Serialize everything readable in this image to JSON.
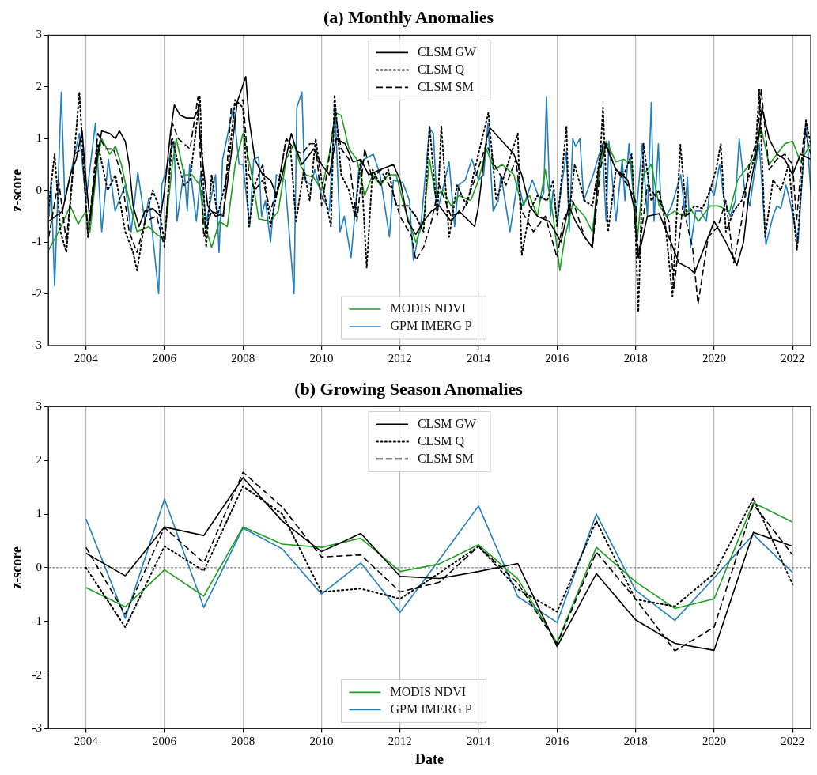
{
  "chart_data": [
    {
      "type": "line",
      "title": "(a) Monthly Anomalies",
      "ylabel": "z-score",
      "xlim": [
        2003.04,
        2022.46
      ],
      "xticks": [
        2004,
        2006,
        2008,
        2010,
        2012,
        2014,
        2016,
        2018,
        2020,
        2022
      ],
      "ylim": [
        -3,
        3
      ],
      "yticks": [
        -3,
        -2,
        -1,
        0,
        1,
        2,
        3
      ],
      "grid": "x",
      "legend": "top",
      "marker": "none",
      "series": [
        {
          "name": "CLSM GW",
          "color": "#000000",
          "line_style": "solid",
          "x": [
            2003.05,
            2003.4,
            2003.6,
            2003.75,
            2003.9,
            2004.0,
            2004.1,
            2004.3,
            2004.4,
            2004.6,
            2004.75,
            2004.85,
            2005.0,
            2005.1,
            2005.2,
            2005.35,
            2005.5,
            2005.7,
            2005.9,
            2006.0,
            2006.15,
            2006.25,
            2006.4,
            2006.55,
            2006.75,
            2006.85,
            2006.95,
            2007.1,
            2007.3,
            2007.5,
            2007.7,
            2007.85,
            2008.07,
            2008.15,
            2008.3,
            2008.5,
            2008.7,
            2008.85,
            2009.0,
            2009.23,
            2009.35,
            2009.5,
            2009.8,
            2010.0,
            2010.2,
            2010.37,
            2010.6,
            2010.8,
            2011.0,
            2011.2,
            2011.5,
            2011.83,
            2012.0,
            2012.2,
            2012.4,
            2012.6,
            2012.8,
            2013.0,
            2013.3,
            2013.5,
            2013.9,
            2014.0,
            2014.2,
            2014.3,
            2014.6,
            2014.9,
            2015.1,
            2015.3,
            2015.5,
            2015.8,
            2016.1,
            2016.3,
            2016.47,
            2016.7,
            2016.9,
            2017.05,
            2017.19,
            2017.5,
            2017.8,
            2017.95,
            2018.07,
            2018.3,
            2018.6,
            2018.9,
            2019.1,
            2019.36,
            2019.5,
            2019.8,
            2020.0,
            2020.3,
            2020.58,
            2020.75,
            2020.9,
            2021.1,
            2021.22,
            2021.4,
            2021.6,
            2021.8,
            2022.0,
            2022.2,
            2022.46
          ],
          "values": [
            -0.6,
            -0.4,
            0.3,
            0.6,
            1.15,
            0.2,
            -0.6,
            0.7,
            1.15,
            1.1,
            1.0,
            1.15,
            0.95,
            0.5,
            -0.3,
            -0.7,
            -0.4,
            -0.35,
            -0.5,
            0,
            1.1,
            1.65,
            1.45,
            1.4,
            1.4,
            1.55,
            0.7,
            -0.3,
            -0.5,
            -0.45,
            0.7,
            1.7,
            2.2,
            1.4,
            0.6,
            0.3,
            0.2,
            -0.1,
            0.3,
            1.1,
            0.8,
            0.5,
            0.8,
            0.5,
            0.3,
            1.0,
            0.9,
            0.55,
            0.6,
            0.3,
            0.4,
            0.5,
            0.2,
            -0.6,
            -0.85,
            -0.6,
            -0.4,
            -0.3,
            -0.6,
            -0.4,
            -0.7,
            -0.3,
            1.0,
            1.2,
            0.95,
            0.7,
            0.3,
            -0.3,
            -0.5,
            -0.6,
            -1.0,
            -0.3,
            -0.6,
            -0.9,
            -1.1,
            0.4,
            0.95,
            0.4,
            0.2,
            -0.3,
            -1.3,
            -0.5,
            -0.45,
            -1.0,
            -1.4,
            -1.5,
            -1.6,
            -1.0,
            -0.6,
            -1.0,
            -1.45,
            -1.0,
            0.0,
            0.8,
            1.6,
            1.0,
            0.7,
            0.6,
            0.3,
            0.7,
            0.6
          ]
        },
        {
          "name": "CLSM Q",
          "color": "#000000",
          "line_style": "dotted",
          "x": [
            2003.05,
            2003.2,
            2003.35,
            2003.5,
            2003.83,
            2004.05,
            2004.3,
            2004.55,
            2004.75,
            2005.0,
            2005.2,
            2005.3,
            2005.5,
            2005.7,
            2005.85,
            2006.0,
            2006.2,
            2006.35,
            2006.5,
            2006.65,
            2006.9,
            2007.06,
            2007.2,
            2007.35,
            2007.6,
            2007.8,
            2008.0,
            2008.15,
            2008.3,
            2008.5,
            2008.7,
            2008.9,
            2009.1,
            2009.2,
            2009.35,
            2009.55,
            2009.7,
            2009.85,
            2010.0,
            2010.24,
            2010.33,
            2010.5,
            2010.7,
            2010.85,
            2011.0,
            2011.15,
            2011.3,
            2011.5,
            2011.7,
            2011.9,
            2012.2,
            2012.4,
            2012.6,
            2012.75,
            2012.95,
            2013.05,
            2013.25,
            2013.45,
            2013.7,
            2013.9,
            2014.25,
            2014.45,
            2014.7,
            2015.0,
            2015.1,
            2015.3,
            2015.5,
            2015.75,
            2015.9,
            2016.0,
            2016.24,
            2016.3,
            2016.45,
            2016.7,
            2016.9,
            2017.1,
            2017.17,
            2017.3,
            2017.5,
            2017.7,
            2017.9,
            2018.0,
            2018.07,
            2018.2,
            2018.4,
            2018.6,
            2018.75,
            2018.94,
            2019.14,
            2019.3,
            2019.5,
            2019.7,
            2019.9,
            2020.05,
            2020.17,
            2020.3,
            2020.5,
            2020.7,
            2020.9,
            2021.05,
            2021.15,
            2021.3,
            2021.5,
            2021.7,
            2021.9,
            2022.11,
            2022.34,
            2022.46
          ],
          "values": [
            -0.3,
            0.7,
            -0.8,
            -1.2,
            1.9,
            -0.9,
            0.9,
            0,
            0.3,
            -0.8,
            -1.2,
            -1.55,
            -0.6,
            0,
            -0.3,
            -1.0,
            1.0,
            0.5,
            0.1,
            0.2,
            1.8,
            -1.1,
            0.3,
            -0.5,
            0.3,
            1.75,
            1.6,
            -0.7,
            0.1,
            0.5,
            -0.7,
            0.1,
            1.0,
            0.9,
            -0.6,
            0.4,
            -0.2,
            1.0,
            0.2,
            -0.7,
            1.85,
            0.3,
            0,
            -0.5,
            0.6,
            -1.5,
            0.4,
            0.1,
            0.4,
            -0.3,
            -0.3,
            -0.5,
            -0.8,
            1.25,
            -0.5,
            1.25,
            -0.9,
            0.1,
            -0.3,
            0.4,
            1.5,
            -0.2,
            0.4,
            1.1,
            -1.25,
            -0.4,
            -0.1,
            -0.2,
            0.2,
            -0.7,
            1.25,
            -0.5,
            0.5,
            -0.2,
            -0.3,
            0.7,
            1.6,
            -0.8,
            0.4,
            0.3,
            0.7,
            -0.8,
            -2.35,
            0.9,
            -0.2,
            0.0,
            -0.6,
            -2.05,
            0.88,
            -0.5,
            -0.3,
            -0.35,
            0.0,
            0.4,
            0.9,
            -0.8,
            -0.4,
            -0.2,
            0.3,
            0.7,
            1.95,
            -0.9,
            0.2,
            0.0,
            0.5,
            -1.15,
            1.35,
            0.9
          ]
        },
        {
          "name": "CLSM SM",
          "color": "#000000",
          "line_style": "dashed",
          "x": [
            2003.05,
            2003.3,
            2003.5,
            2003.7,
            2003.9,
            2004.05,
            2004.3,
            2004.5,
            2004.7,
            2004.9,
            2005.1,
            2005.3,
            2005.5,
            2005.8,
            2006.0,
            2006.2,
            2006.35,
            2006.5,
            2006.65,
            2006.85,
            2007.0,
            2007.2,
            2007.5,
            2007.7,
            2007.9,
            2008.0,
            2008.15,
            2008.3,
            2008.5,
            2008.7,
            2008.9,
            2009.1,
            2009.3,
            2009.5,
            2009.7,
            2009.85,
            2010.0,
            2010.15,
            2010.35,
            2010.5,
            2010.7,
            2010.9,
            2011.1,
            2011.3,
            2011.5,
            2011.8,
            2012.0,
            2012.3,
            2012.4,
            2012.6,
            2012.8,
            2013.0,
            2013.3,
            2013.6,
            2013.9,
            2014.2,
            2014.4,
            2014.7,
            2014.95,
            2015.1,
            2015.4,
            2015.7,
            2016.0,
            2016.15,
            2016.4,
            2016.7,
            2016.9,
            2017.1,
            2017.25,
            2017.5,
            2017.8,
            2018.0,
            2018.07,
            2018.3,
            2018.6,
            2018.85,
            2018.98,
            2019.2,
            2019.45,
            2019.59,
            2019.85,
            2020.1,
            2020.3,
            2020.5,
            2020.7,
            2020.9,
            2021.1,
            2021.2,
            2021.4,
            2021.6,
            2021.8,
            2022.0,
            2022.1,
            2022.3,
            2022.46
          ],
          "values": [
            -0.9,
            0.2,
            -1.0,
            0.7,
            0.8,
            -0.9,
            1.1,
            0.8,
            0.8,
            0.3,
            -0.8,
            -1.2,
            -0.6,
            -0.5,
            -1.1,
            1.3,
            1.0,
            0.9,
            0.8,
            1.8,
            -0.9,
            -0.4,
            -0.5,
            1.6,
            1.7,
            1.75,
            0.3,
            0.0,
            0.2,
            -0.4,
            0.1,
            1.0,
            0.8,
            0.7,
            0.9,
            0.9,
            -0.3,
            0.4,
            1.5,
            0.8,
            0.6,
            -0.6,
            0.8,
            0.2,
            0.4,
            0.0,
            -0.5,
            -0.9,
            -1.35,
            -1.1,
            -0.6,
            0.1,
            -0.5,
            -0.4,
            0.2,
            0.9,
            0.5,
            0.1,
            0.6,
            -0.4,
            -0.8,
            -0.5,
            -1.3,
            -0.6,
            -0.2,
            -0.9,
            -1.1,
            0.4,
            0.9,
            0.4,
            0.1,
            -0.2,
            -1.3,
            0.1,
            -0.2,
            -0.6,
            -1.9,
            -0.3,
            -1.1,
            -2.2,
            -0.9,
            -0.7,
            -0.2,
            -1.4,
            -0.6,
            0.5,
            1.0,
            1.95,
            0.4,
            0.6,
            0.7,
            0.5,
            -0.6,
            1.2,
            0.7
          ]
        },
        {
          "name": "MODIS NDVI",
          "color": "#1ca01c",
          "x": [
            2003.05,
            2003.3,
            2003.6,
            2003.8,
            2004.0,
            2004.1,
            2004.3,
            2004.4,
            2004.6,
            2004.75,
            2004.9,
            2005.1,
            2005.3,
            2005.6,
            2005.8,
            2006.0,
            2006.2,
            2006.3,
            2006.5,
            2006.7,
            2006.9,
            2007.0,
            2007.2,
            2007.4,
            2007.6,
            2007.8,
            2008.0,
            2008.2,
            2008.4,
            2008.7,
            2008.9,
            2009.1,
            2009.3,
            2009.45,
            2009.6,
            2009.8,
            2010.0,
            2010.2,
            2010.35,
            2010.5,
            2010.7,
            2010.9,
            2011.1,
            2011.3,
            2011.5,
            2011.7,
            2011.9,
            2012.1,
            2012.4,
            2012.6,
            2012.75,
            2012.9,
            2013.1,
            2013.3,
            2013.5,
            2013.8,
            2014.0,
            2014.2,
            2014.4,
            2014.6,
            2014.9,
            2015.1,
            2015.3,
            2015.5,
            2015.7,
            2015.9,
            2016.07,
            2016.2,
            2016.4,
            2016.7,
            2016.9,
            2017.1,
            2017.25,
            2017.5,
            2017.7,
            2017.9,
            2018.05,
            2018.2,
            2018.4,
            2018.6,
            2018.8,
            2019.0,
            2019.2,
            2019.4,
            2019.6,
            2019.9,
            2020.1,
            2020.4,
            2020.6,
            2020.8,
            2021.0,
            2021.2,
            2021.4,
            2021.6,
            2021.8,
            2022.0,
            2022.2,
            2022.46
          ],
          "values": [
            -1.15,
            -0.8,
            -0.3,
            -0.65,
            -0.4,
            -0.8,
            0.6,
            1.0,
            0.7,
            0.85,
            0.5,
            -0.2,
            -0.8,
            -0.7,
            -0.85,
            -0.95,
            0.5,
            1.0,
            0.3,
            0.3,
            0.1,
            -0.6,
            -1.1,
            -0.6,
            -0.7,
            0.5,
            1.1,
            0.4,
            -0.55,
            -0.6,
            -0.4,
            0.6,
            0.9,
            0.5,
            0.3,
            0.25,
            0.0,
            0.7,
            1.5,
            1.45,
            0.8,
            0.6,
            -0.1,
            0.3,
            0.1,
            0.3,
            0.3,
            -0.3,
            -1.0,
            -0.6,
            0.6,
            -0.1,
            0.0,
            -0.3,
            -0.1,
            -0.2,
            0.2,
            0.8,
            0.4,
            0.5,
            0.3,
            -0.3,
            -0.1,
            -0.5,
            0.4,
            -0.5,
            -1.55,
            -0.9,
            -0.25,
            -0.5,
            -0.8,
            0.5,
            0.95,
            0.55,
            0.6,
            0.5,
            -0.9,
            0.3,
            0.5,
            -0.3,
            -0.5,
            -0.4,
            -0.5,
            -0.35,
            -0.6,
            -0.3,
            -0.3,
            -0.4,
            0.2,
            0.4,
            0.6,
            1.2,
            0.5,
            0.7,
            0.9,
            0.95,
            0.55,
            0.9
          ]
        },
        {
          "name": "GPM IMERG P",
          "color": "#1f7fc0",
          "x": [
            2003.06,
            2003.11,
            2003.2,
            2003.37,
            2003.46,
            2003.83,
            2004.0,
            2004.24,
            2004.4,
            2004.57,
            2004.74,
            2005.0,
            2005.15,
            2005.32,
            2005.5,
            2005.6,
            2005.85,
            2005.93,
            2006.24,
            2006.32,
            2006.5,
            2006.58,
            2006.64,
            2006.81,
            2006.92,
            2007.07,
            2007.3,
            2007.39,
            2007.48,
            2007.75,
            2007.9,
            2008.0,
            2008.17,
            2008.27,
            2008.4,
            2008.47,
            2008.57,
            2008.7,
            2008.85,
            2009.07,
            2009.3,
            2009.37,
            2009.5,
            2009.57,
            2009.73,
            2009.83,
            2010.0,
            2010.2,
            2010.34,
            2010.47,
            2010.58,
            2010.75,
            2010.95,
            2011.08,
            2011.32,
            2011.49,
            2011.73,
            2011.83,
            2012.07,
            2012.24,
            2012.34,
            2012.54,
            2012.75,
            2012.85,
            2012.95,
            2013.08,
            2013.25,
            2013.39,
            2013.49,
            2013.66,
            2013.83,
            2014.0,
            2014.13,
            2014.24,
            2014.37,
            2014.5,
            2014.57,
            2014.8,
            2015.0,
            2015.15,
            2015.37,
            2015.57,
            2015.66,
            2015.73,
            2015.83,
            2015.9,
            2016.0,
            2016.1,
            2016.24,
            2016.31,
            2016.4,
            2016.47,
            2016.58,
            2016.68,
            2016.92,
            2017.15,
            2017.25,
            2017.32,
            2017.5,
            2017.66,
            2017.73,
            2017.83,
            2018.0,
            2018.17,
            2018.3,
            2018.4,
            2018.47,
            2018.58,
            2018.64,
            2018.78,
            2018.92,
            2019.15,
            2019.25,
            2019.32,
            2019.4,
            2019.53,
            2019.66,
            2019.8,
            2019.9,
            2020.0,
            2020.14,
            2020.24,
            2020.41,
            2020.54,
            2020.64,
            2020.78,
            2020.91,
            2021.0,
            2021.15,
            2021.32,
            2021.5,
            2021.6,
            2021.7,
            2021.83,
            2021.93,
            2022.14,
            2022.34,
            2022.46
          ],
          "values": [
            -0.5,
            0.2,
            -1.85,
            1.9,
            -0.2,
            1.1,
            -0.2,
            1.3,
            -0.8,
            0.6,
            -0.4,
            0.1,
            -0.8,
            0.35,
            -0.6,
            -0.15,
            -2.0,
            0.1,
            0.95,
            -0.6,
            0.4,
            -0.4,
            0.5,
            -0.6,
            0.3,
            -0.6,
            0.3,
            -1.2,
            0.6,
            1.6,
            0.5,
            0.5,
            -0.7,
            0.6,
            0.65,
            -0.5,
            -0.2,
            -1.0,
            0.3,
            0.2,
            -2.0,
            1.6,
            1.9,
            0.2,
            0.1,
            0.4,
            -0.1,
            -0.4,
            1.65,
            -0.8,
            -0.5,
            -1.3,
            0.4,
            0.6,
            0.7,
            0.3,
            -0.9,
            0.2,
            0.15,
            -0.2,
            -1.35,
            -0.6,
            1.2,
            1.1,
            -0.4,
            0.0,
            0.55,
            -0.7,
            0.1,
            0.2,
            0.6,
            0.2,
            0.3,
            1.3,
            -0.4,
            -0.2,
            0.3,
            -0.8,
            0.2,
            -0.3,
            0.2,
            -0.2,
            -0.05,
            1.8,
            -0.5,
            0.0,
            -0.6,
            0.0,
            0.75,
            -0.8,
            1.0,
            0.85,
            1.0,
            -0.2,
            0.3,
            0.9,
            -0.6,
            0.95,
            -0.6,
            0.6,
            -0.2,
            0.9,
            -0.6,
            0.9,
            -0.5,
            1.7,
            -0.6,
            0.9,
            -0.2,
            -0.5,
            -0.3,
            0.3,
            -0.4,
            0.25,
            -1.1,
            -0.4,
            -0.4,
            -0.6,
            0.05,
            -0.1,
            0.5,
            -0.1,
            -0.5,
            -0.2,
            1.0,
            0.0,
            -0.3,
            0.2,
            0.9,
            -1.05,
            -0.5,
            -0.3,
            -0.35,
            0.1,
            -0.2,
            -1.0,
            1.35,
            0.0
          ]
        }
      ]
    },
    {
      "type": "line",
      "title": "(b) Growing Season Anomalies",
      "xlabel": "Date",
      "ylabel": "z-score",
      "x": [
        2004,
        2005,
        2006,
        2007,
        2008,
        2009,
        2010,
        2011,
        2012,
        2013,
        2014,
        2015,
        2016,
        2017,
        2018,
        2019,
        2020,
        2021,
        2022
      ],
      "xlim": [
        2003.04,
        2022.46
      ],
      "xticks": [
        2004,
        2006,
        2008,
        2010,
        2012,
        2014,
        2016,
        2018,
        2020,
        2022
      ],
      "ylim": [
        -3,
        3
      ],
      "yticks": [
        -3,
        -2,
        -1,
        0,
        1,
        2,
        3
      ],
      "grid": "x",
      "legend": "top",
      "marker": "none",
      "ref_lines": [
        {
          "axis": "y",
          "value": 0,
          "color": "#666666",
          "line_style": "dashed"
        }
      ],
      "series": [
        {
          "name": "CLSM GW",
          "color": "#000000",
          "line_style": "solid",
          "values": [
            0.27,
            -0.15,
            0.76,
            0.6,
            1.68,
            0.87,
            0.3,
            0.64,
            -0.16,
            -0.2,
            -0.07,
            0.08,
            -1.47,
            -0.11,
            -0.97,
            -1.41,
            -1.54,
            0.66,
            0.4
          ]
        },
        {
          "name": "CLSM Q",
          "color": "#000000",
          "line_style": "dotted",
          "values": [
            0.0,
            -1.11,
            0.4,
            -0.06,
            1.52,
            1.0,
            -0.45,
            -0.39,
            -0.58,
            -0.1,
            0.4,
            -0.4,
            -0.82,
            0.87,
            -0.59,
            -0.72,
            -0.11,
            1.29,
            -0.31
          ]
        },
        {
          "name": "CLSM SM",
          "color": "#000000",
          "line_style": "dashed",
          "values": [
            0.38,
            -0.87,
            0.75,
            0.09,
            1.78,
            1.13,
            0.2,
            0.24,
            -0.45,
            -0.27,
            0.4,
            -0.29,
            -1.42,
            0.29,
            -0.58,
            -1.55,
            -1.11,
            1.18,
            0.24
          ]
        },
        {
          "name": "MODIS NDVI",
          "color": "#1ca01c",
          "values": [
            -0.37,
            -0.73,
            -0.04,
            -0.53,
            0.76,
            0.44,
            0.38,
            0.55,
            -0.07,
            0.07,
            0.43,
            -0.21,
            -1.4,
            0.38,
            -0.26,
            -0.76,
            -0.58,
            1.21,
            0.85
          ]
        },
        {
          "name": "GPM IMERG P",
          "color": "#1f7fc0",
          "values": [
            0.91,
            -0.94,
            1.28,
            -0.74,
            0.74,
            0.35,
            -0.49,
            0.09,
            -0.83,
            0.15,
            1.15,
            -0.54,
            -1.02,
            1.0,
            -0.42,
            -0.98,
            -0.19,
            0.62,
            -0.09
          ]
        }
      ]
    }
  ]
}
